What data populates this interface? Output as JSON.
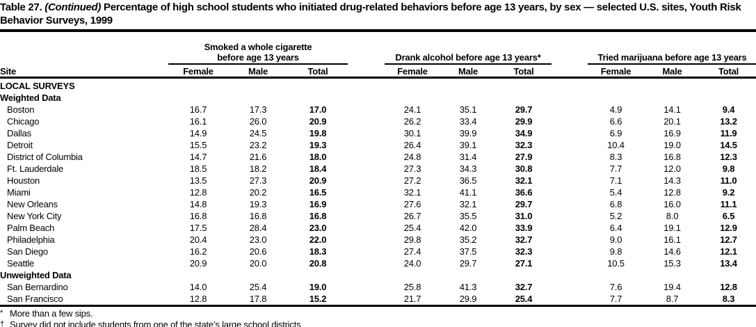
{
  "title": {
    "part1": "Table 27.",
    "continued": "(Continued)",
    "part2": "Percentage of high school students who initiated drug-related behaviors before age 13 years, by sex — selected U.S. sites, Youth Risk Behavior Surveys, 1999"
  },
  "table": {
    "site_header": "Site",
    "groups": [
      {
        "label": "Smoked a whole cigarette before age 13 years",
        "cols": [
          "Female",
          "Male",
          "Total"
        ]
      },
      {
        "label": "Drank alcohol before age 13 years*",
        "cols": [
          "Female",
          "Male",
          "Total"
        ]
      },
      {
        "label": "Tried marijuana before age 13 years",
        "cols": [
          "Female",
          "Male",
          "Total"
        ]
      }
    ],
    "rows": [
      {
        "type": "section",
        "label": "LOCAL SURVEYS"
      },
      {
        "type": "subsection",
        "label": "Weighted Data"
      },
      {
        "type": "site",
        "label": "Boston",
        "values": [
          "16.7",
          "17.3",
          "17.0",
          "24.1",
          "35.1",
          "29.7",
          "4.9",
          "14.1",
          "9.4"
        ]
      },
      {
        "type": "site",
        "label": "Chicago",
        "values": [
          "16.1",
          "26.0",
          "20.9",
          "26.2",
          "33.4",
          "29.9",
          "6.6",
          "20.1",
          "13.2"
        ]
      },
      {
        "type": "site",
        "label": "Dallas",
        "values": [
          "14.9",
          "24.5",
          "19.8",
          "30.1",
          "39.9",
          "34.9",
          "6.9",
          "16.9",
          "11.9"
        ]
      },
      {
        "type": "site",
        "label": "Detroit",
        "values": [
          "15.5",
          "23.2",
          "19.3",
          "26.4",
          "39.1",
          "32.3",
          "10.4",
          "19.0",
          "14.5"
        ]
      },
      {
        "type": "site",
        "label": "District of Columbia",
        "values": [
          "14.7",
          "21.6",
          "18.0",
          "24.8",
          "31.4",
          "27.9",
          "8.3",
          "16.8",
          "12.3"
        ]
      },
      {
        "type": "site",
        "label": "Ft. Lauderdale",
        "values": [
          "18.5",
          "18.2",
          "18.4",
          "27.3",
          "34.3",
          "30.8",
          "7.7",
          "12.0",
          "9.8"
        ]
      },
      {
        "type": "site",
        "label": "Houston",
        "values": [
          "13.5",
          "27.3",
          "20.9",
          "27.2",
          "36.5",
          "32.1",
          "7.1",
          "14.3",
          "11.0"
        ]
      },
      {
        "type": "site",
        "label": "Miami",
        "values": [
          "12.8",
          "20.2",
          "16.5",
          "32.1",
          "41.1",
          "36.6",
          "5.4",
          "12.8",
          "9.2"
        ]
      },
      {
        "type": "site",
        "label": "New Orleans",
        "values": [
          "14.8",
          "19.3",
          "16.9",
          "27.6",
          "32.1",
          "29.7",
          "6.8",
          "16.0",
          "11.1"
        ]
      },
      {
        "type": "site",
        "label": "New York City",
        "values": [
          "16.8",
          "16.8",
          "16.8",
          "26.7",
          "35.5",
          "31.0",
          "5.2",
          "8.0",
          "6.5"
        ]
      },
      {
        "type": "site",
        "label": "Palm Beach",
        "values": [
          "17.5",
          "28.4",
          "23.0",
          "25.4",
          "42.0",
          "33.9",
          "6.4",
          "19.1",
          "12.9"
        ]
      },
      {
        "type": "site",
        "label": "Philadelphia",
        "values": [
          "20.4",
          "23.0",
          "22.0",
          "29.8",
          "35.2",
          "32.7",
          "9.0",
          "16.1",
          "12.7"
        ]
      },
      {
        "type": "site",
        "label": "San Diego",
        "values": [
          "16.2",
          "20.6",
          "18.3",
          "27.4",
          "37.5",
          "32.3",
          "9.8",
          "14.6",
          "12.1"
        ]
      },
      {
        "type": "site",
        "label": "Seattle",
        "values": [
          "20.9",
          "20.0",
          "20.8",
          "24.0",
          "29.7",
          "27.1",
          "10.5",
          "15.3",
          "13.4"
        ]
      },
      {
        "type": "subsection",
        "label": "Unweighted Data"
      },
      {
        "type": "site",
        "label": "San Bernardino",
        "values": [
          "14.0",
          "25.4",
          "19.0",
          "25.8",
          "41.3",
          "32.7",
          "7.6",
          "19.4",
          "12.8"
        ]
      },
      {
        "type": "site",
        "label": "San Francisco",
        "values": [
          "12.8",
          "17.8",
          "15.2",
          "21.7",
          "29.9",
          "25.4",
          "7.7",
          "8.7",
          "8.3"
        ]
      }
    ]
  },
  "footnotes": [
    {
      "marker": "*",
      "text": "More than a few sips."
    },
    {
      "marker": "†",
      "text": "Survey did not include students from one of the state’s large school districts."
    }
  ]
}
